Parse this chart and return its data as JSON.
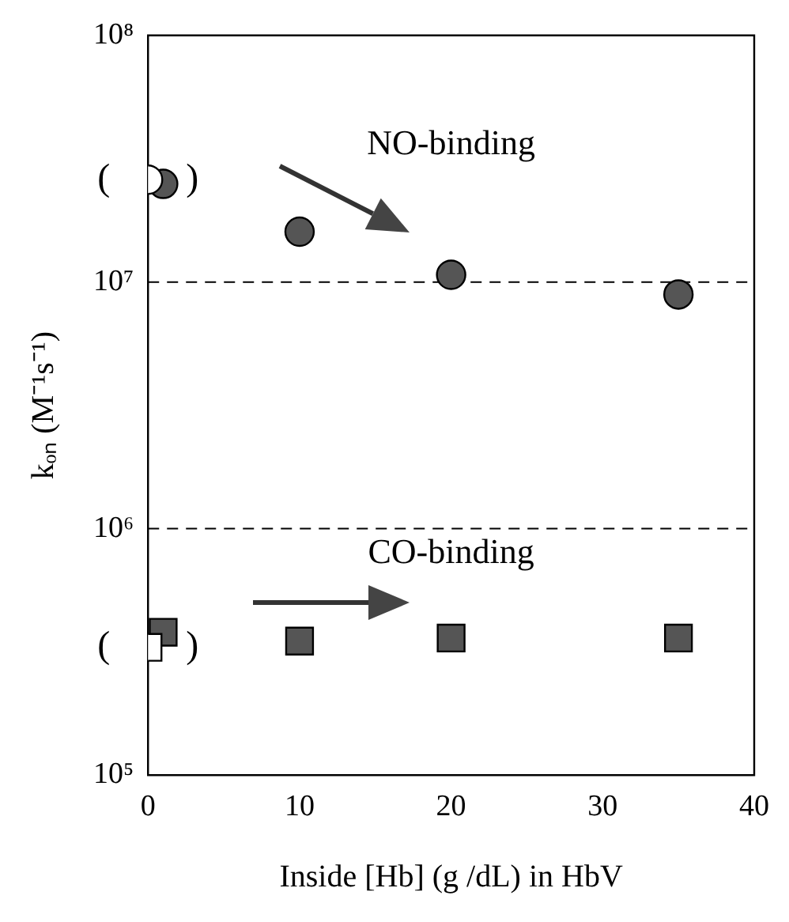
{
  "chart_data": {
    "type": "scatter",
    "xlabel": "Inside [Hb] (g /dL) in HbV",
    "ylabel": "kₒₙ (M⁻¹s⁻¹)",
    "xlim": [
      0,
      40
    ],
    "xticks": [
      0,
      10,
      20,
      30,
      40
    ],
    "ylim": [
      100000,
      100000000
    ],
    "yticks": [
      {
        "value": 100000,
        "label": "10⁵"
      },
      {
        "value": 1000000,
        "label": "10⁶"
      },
      {
        "value": 10000000,
        "label": "10⁷"
      },
      {
        "value": 100000000,
        "label": "10⁸"
      }
    ],
    "log": "y",
    "grid": false,
    "legend": false,
    "series": [
      {
        "name": "NO-binding",
        "x": [
          1,
          10,
          20,
          35
        ],
        "values": [
          25000000,
          16000000,
          10700000,
          8900000
        ],
        "color": "#555555",
        "marker": "circle"
      },
      {
        "x": [
          0
        ],
        "values": [
          26000000
        ],
        "color": "#ffffff",
        "marker": "circle"
      },
      {
        "name": "CO-binding",
        "x": [
          1,
          10,
          20,
          35
        ],
        "values": [
          380000,
          350000,
          360000,
          360000
        ],
        "color": "#555555",
        "marker": "square"
      },
      {
        "x": [
          0
        ],
        "values": [
          330000
        ],
        "color": "#ffffff",
        "marker": "square"
      }
    ],
    "ref_lines": [
      {
        "axis": "y",
        "value": 10000000,
        "line_style": "dashed"
      },
      {
        "axis": "y",
        "value": 1000000,
        "line_style": "dashed"
      }
    ],
    "annotations": [
      {
        "text": "(        )",
        "x": 0,
        "y": 26000000
      },
      {
        "text": "(        )",
        "x": 0,
        "y": 330000
      }
    ]
  }
}
